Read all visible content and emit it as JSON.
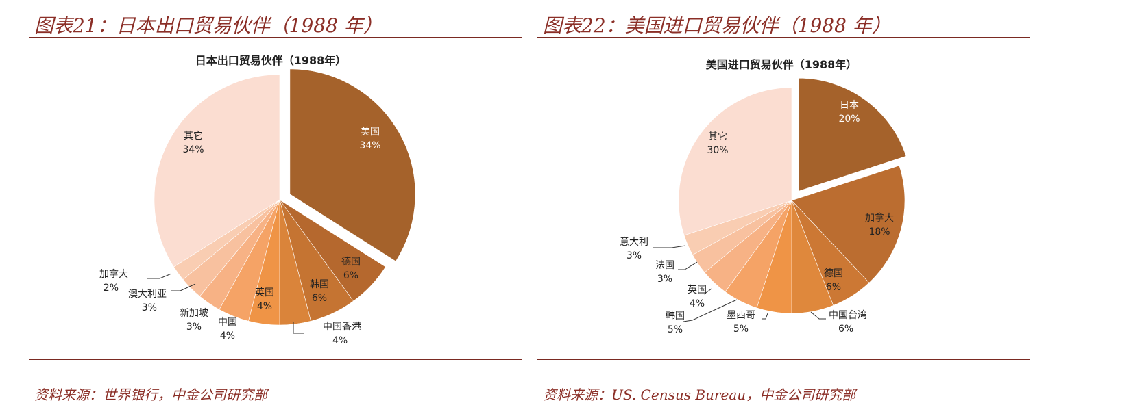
{
  "panels": [
    {
      "figure_title": "图表21：日本出口贸易伙伴（1988 年）",
      "source": "资料来源：世界银行，中金公司研究部"
    },
    {
      "figure_title": "图表22：美国进口贸易伙伴（1988 年）",
      "source": "资料来源：US. Census Bureau，中金公司研究部"
    }
  ],
  "chart_data": [
    {
      "type": "pie",
      "title": "日本出口贸易伙伴（1988年）",
      "slices": [
        {
          "label": "美国",
          "value": 34,
          "value_label": "34%",
          "color": "#a5622b",
          "text_color": "#ffffff",
          "exploded": true
        },
        {
          "label": "德国",
          "value": 6,
          "value_label": "6%",
          "color": "#b5682e",
          "text_color": "#222222"
        },
        {
          "label": "韩国",
          "value": 6,
          "value_label": "6%",
          "color": "#c57432",
          "text_color": "#222222"
        },
        {
          "label": "中国香港",
          "value": 4,
          "value_label": "4%",
          "color": "#da843a",
          "text_color": "#222222",
          "leader": true
        },
        {
          "label": "英国",
          "value": 4,
          "value_label": "4%",
          "color": "#ef9446",
          "text_color": "#222222"
        },
        {
          "label": "中国",
          "value": 4,
          "value_label": "4%",
          "color": "#f5a366",
          "text_color": "#222222"
        },
        {
          "label": "新加坡",
          "value": 3,
          "value_label": "3%",
          "color": "#f7b285",
          "text_color": "#222222"
        },
        {
          "label": "澳大利亚",
          "value": 3,
          "value_label": "3%",
          "color": "#f8c19f",
          "text_color": "#222222",
          "leader": true
        },
        {
          "label": "加拿大",
          "value": 2,
          "value_label": "2%",
          "color": "#f9cdb2",
          "text_color": "#222222",
          "leader": true
        },
        {
          "label": "其它",
          "value": 34,
          "value_label": "34%",
          "color": "#fbddd1",
          "text_color": "#222222"
        }
      ]
    },
    {
      "type": "pie",
      "title": "美国进口贸易伙伴（1988年）",
      "slices": [
        {
          "label": "日本",
          "value": 20,
          "value_label": "20%",
          "color": "#a5622b",
          "text_color": "#ffffff",
          "exploded": true
        },
        {
          "label": "加拿大",
          "value": 18,
          "value_label": "18%",
          "color": "#bb6d30",
          "text_color": "#222222"
        },
        {
          "label": "德国",
          "value": 6,
          "value_label": "6%",
          "color": "#cc7834",
          "text_color": "#222222"
        },
        {
          "label": "中国台湾",
          "value": 6,
          "value_label": "6%",
          "color": "#df883c",
          "text_color": "#222222",
          "leader": true
        },
        {
          "label": "墨西哥",
          "value": 5,
          "value_label": "5%",
          "color": "#ef9446",
          "text_color": "#222222",
          "leader": true
        },
        {
          "label": "韩国",
          "value": 5,
          "value_label": "5%",
          "color": "#f5a366",
          "text_color": "#222222",
          "leader": true
        },
        {
          "label": "英国",
          "value": 4,
          "value_label": "4%",
          "color": "#f7b285",
          "text_color": "#222222",
          "leader": true
        },
        {
          "label": "法国",
          "value": 3,
          "value_label": "3%",
          "color": "#f8c19f",
          "text_color": "#222222",
          "leader": true
        },
        {
          "label": "意大利",
          "value": 3,
          "value_label": "3%",
          "color": "#f9cdb2",
          "text_color": "#222222",
          "leader": true
        },
        {
          "label": "其它",
          "value": 30,
          "value_label": "30%",
          "color": "#fbddd1",
          "text_color": "#222222"
        }
      ]
    }
  ]
}
